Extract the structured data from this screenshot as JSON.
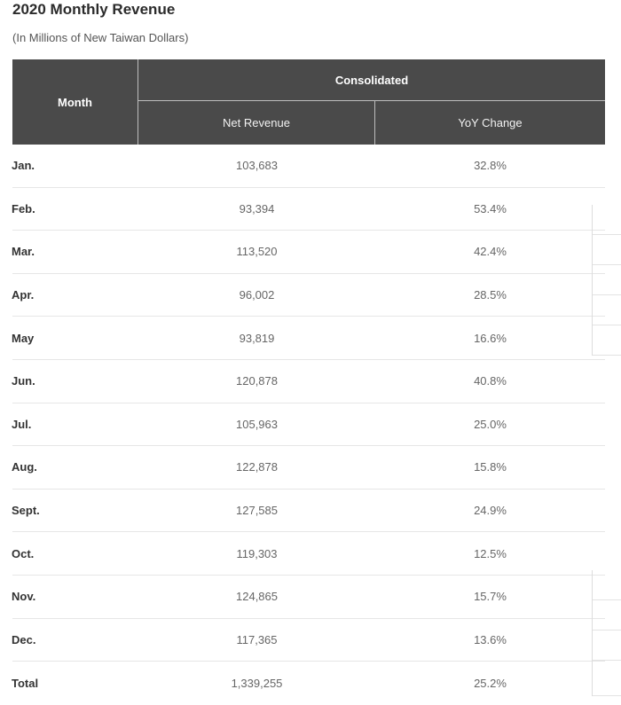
{
  "title": "2020 Monthly Revenue",
  "subtitle": "(In Millions of New Taiwan Dollars)",
  "table": {
    "header_month": "Month",
    "header_group": "Consolidated",
    "header_net": "Net Revenue",
    "header_yoy": "YoY Change",
    "rows": [
      {
        "month": "Jan.",
        "net": "103,683",
        "yoy": "32.8%"
      },
      {
        "month": "Feb.",
        "net": "93,394",
        "yoy": "53.4%"
      },
      {
        "month": "Mar.",
        "net": "113,520",
        "yoy": "42.4%"
      },
      {
        "month": "Apr.",
        "net": "96,002",
        "yoy": "28.5%"
      },
      {
        "month": "May",
        "net": "93,819",
        "yoy": "16.6%"
      },
      {
        "month": "Jun.",
        "net": "120,878",
        "yoy": "40.8%"
      },
      {
        "month": "Jul.",
        "net": "105,963",
        "yoy": "25.0%"
      },
      {
        "month": "Aug.",
        "net": "122,878",
        "yoy": "15.8%"
      },
      {
        "month": "Sept.",
        "net": "127,585",
        "yoy": "24.9%"
      },
      {
        "month": "Oct.",
        "net": "119,303",
        "yoy": "12.5%"
      },
      {
        "month": "Nov.",
        "net": "124,865",
        "yoy": "15.7%"
      },
      {
        "month": "Dec.",
        "net": "117,365",
        "yoy": "13.6%"
      },
      {
        "month": "Total",
        "net": "1,339,255",
        "yoy": "25.2%"
      }
    ]
  }
}
